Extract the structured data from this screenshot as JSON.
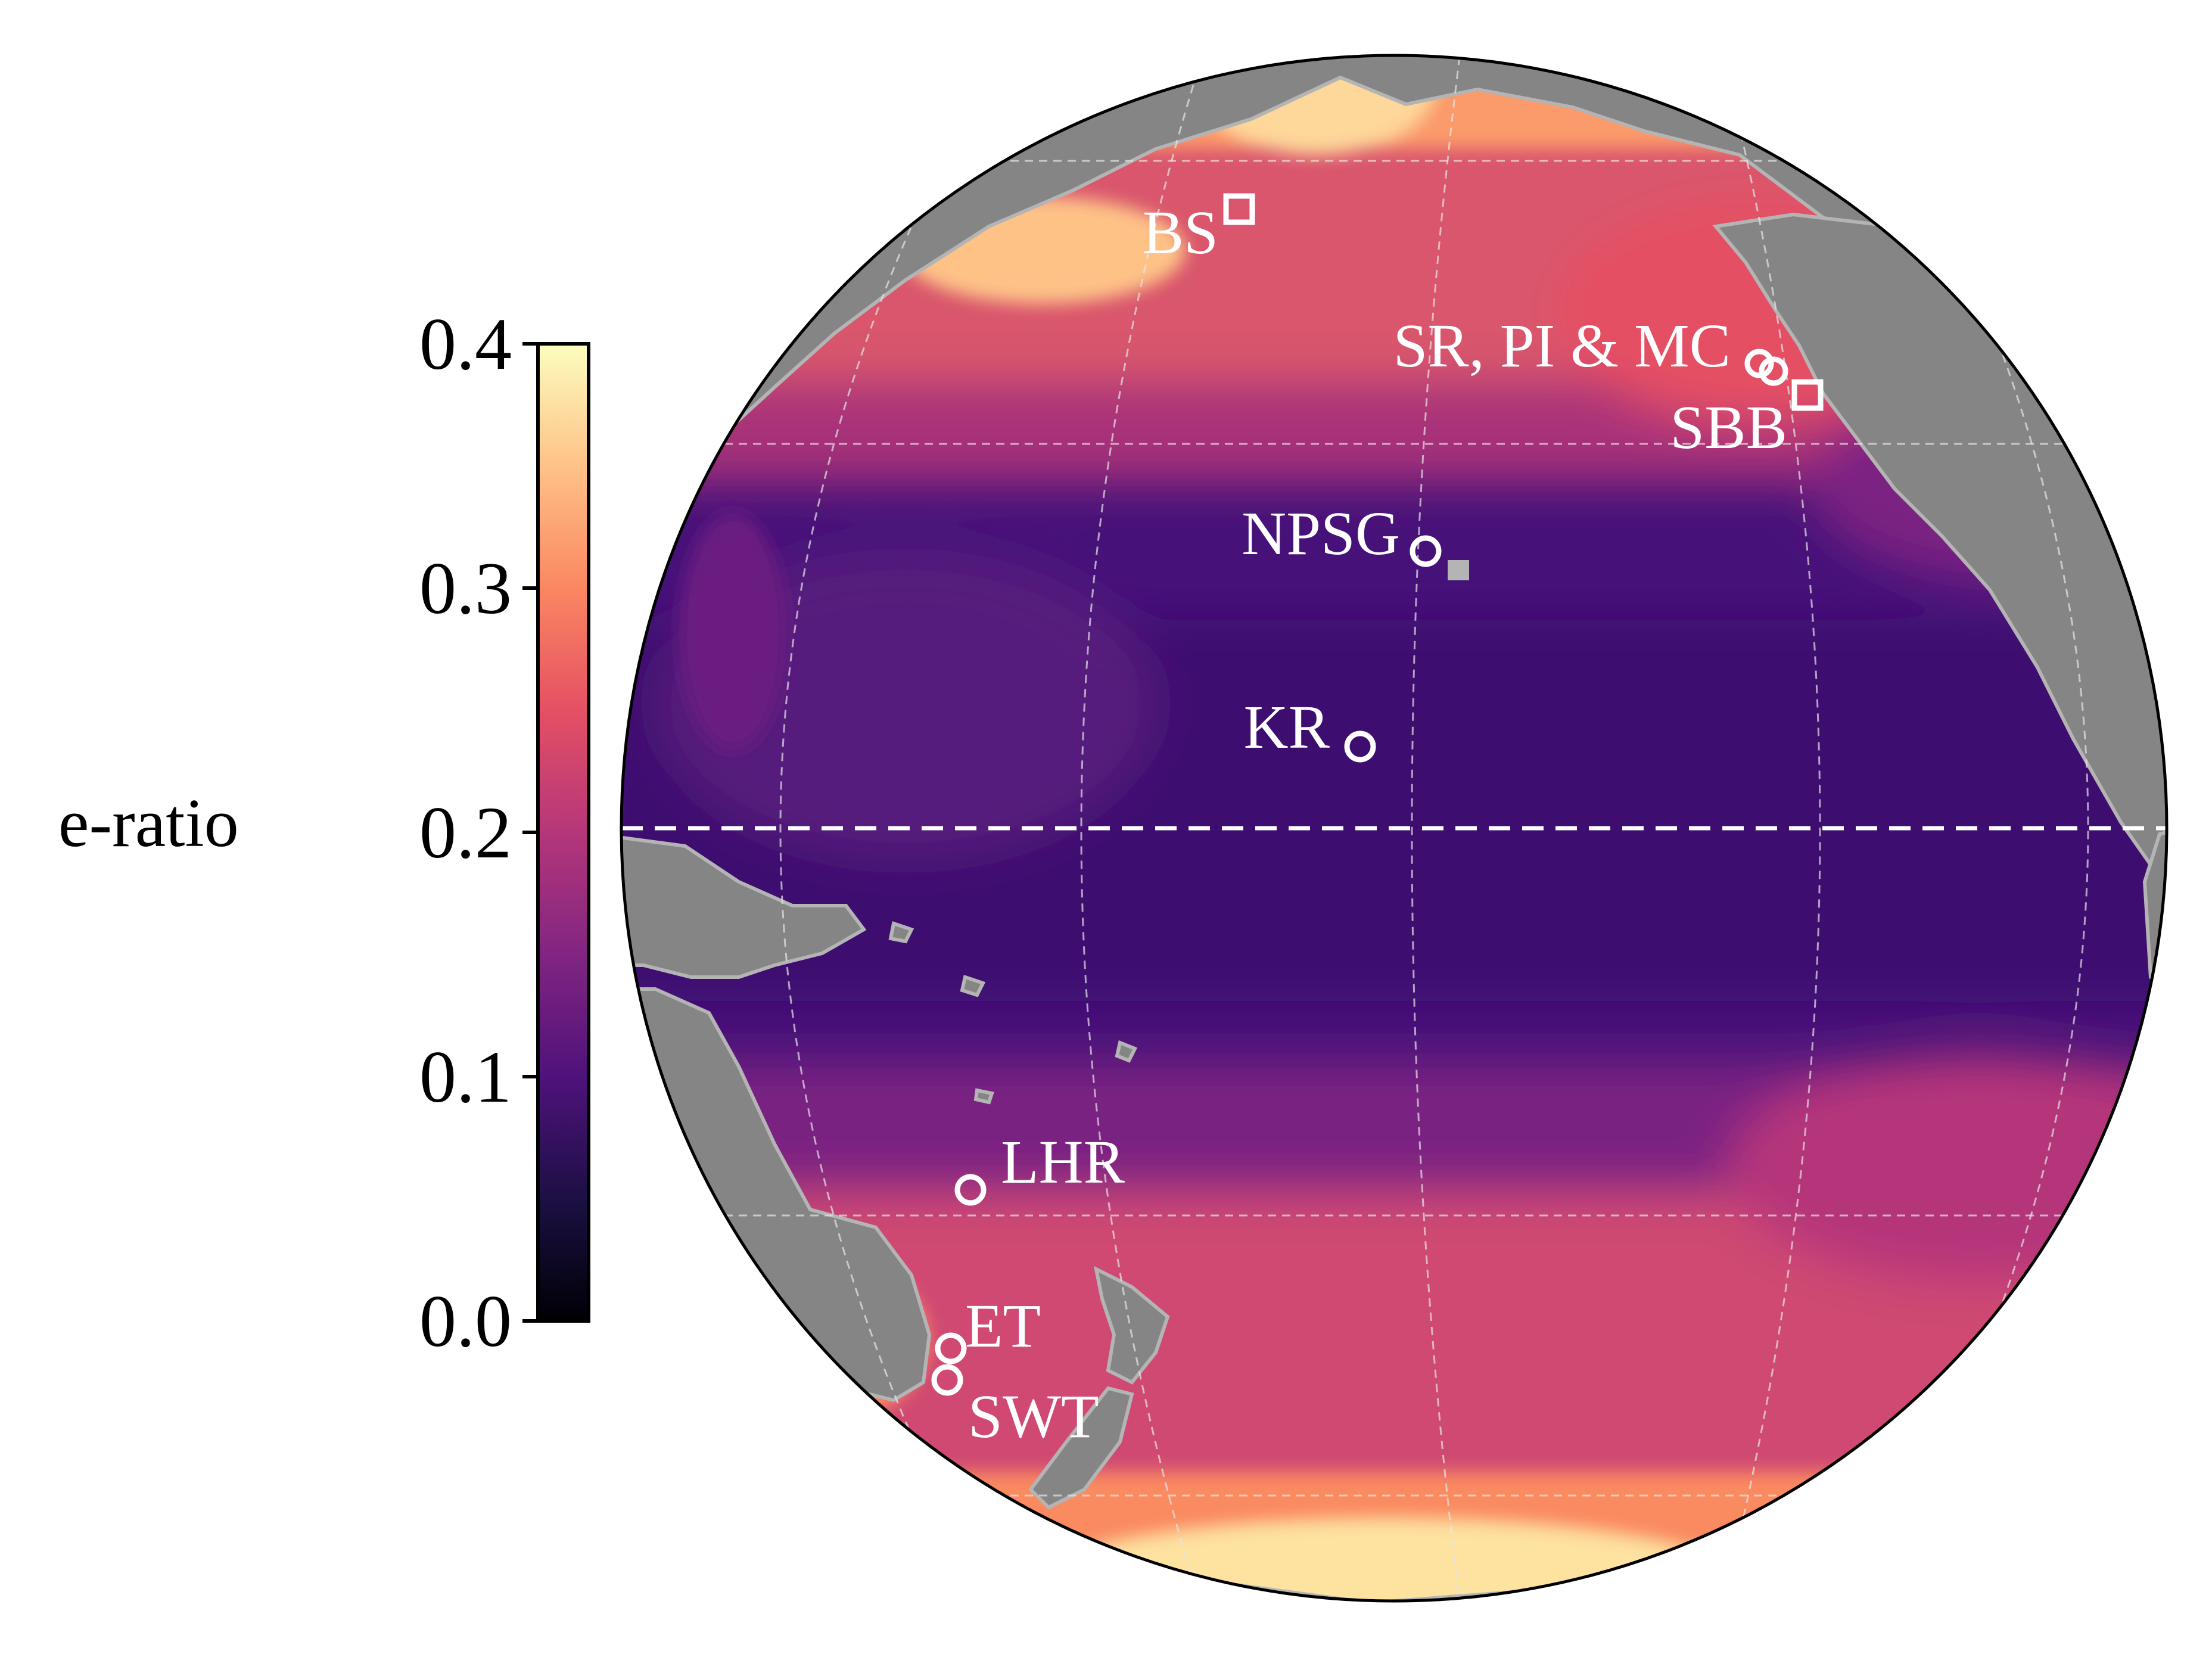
{
  "colorbar": {
    "label": "e-ratio",
    "colormap": "magma",
    "min": 0.0,
    "max": 0.4,
    "ticks": [
      {
        "value": 0.0,
        "label": "0.0"
      },
      {
        "value": 0.1,
        "label": "0.1"
      },
      {
        "value": 0.2,
        "label": "0.2"
      },
      {
        "value": 0.3,
        "label": "0.3"
      },
      {
        "value": 0.4,
        "label": "0.4"
      }
    ],
    "stops": [
      "#000004",
      "#1c1044",
      "#4f127b",
      "#812581",
      "#b5367a",
      "#e55064",
      "#fb8761",
      "#fec287",
      "#fcfdbf"
    ]
  },
  "map": {
    "projection": "orthographic",
    "region": "Pacific Ocean",
    "land_color": "#858585",
    "coastline_color": "#b4b4b4",
    "gridlines": true,
    "equator_line": "white dashed"
  },
  "sites": [
    {
      "label": "BS",
      "marker": "square"
    },
    {
      "label": "SR, PI & MC",
      "marker": "circle"
    },
    {
      "label": "SBB",
      "marker": "square"
    },
    {
      "label": "NPSG",
      "marker": "circle"
    },
    {
      "label": "KR",
      "marker": "circle"
    },
    {
      "label": "LHR",
      "marker": "circle"
    },
    {
      "label": "ET",
      "marker": "circle"
    },
    {
      "label": "SWT",
      "marker": "circle"
    }
  ]
}
